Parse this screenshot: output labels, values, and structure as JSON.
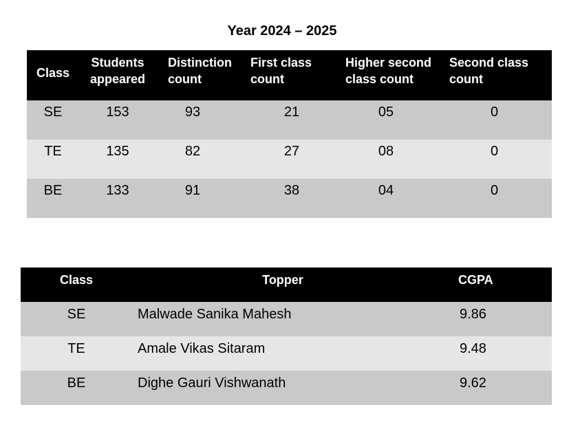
{
  "title": "Year 2024 – 2025",
  "results": {
    "headers": {
      "class": "Class",
      "students_appeared": [
        "Students",
        "appeared"
      ],
      "distinction_count": [
        "Distinction",
        "count"
      ],
      "first_class_count": [
        "First class",
        "count"
      ],
      "higher_second_class_count": [
        "Higher second",
        "class count"
      ],
      "second_class_count": [
        "Second class",
        "count"
      ]
    },
    "rows": [
      {
        "class": "SE",
        "students_appeared": "153",
        "distinction": "93",
        "first_class": "21",
        "higher_second": "05",
        "second_class": "0"
      },
      {
        "class": "TE",
        "students_appeared": "135",
        "distinction": "82",
        "first_class": "27",
        "higher_second": "08",
        "second_class": "0"
      },
      {
        "class": "BE",
        "students_appeared": "133",
        "distinction": "91",
        "first_class": "38",
        "higher_second": "04",
        "second_class": "0"
      }
    ]
  },
  "toppers": {
    "headers": {
      "class": "Class",
      "topper": "Topper",
      "cgpa": "CGPA"
    },
    "rows": [
      {
        "class": "SE",
        "topper": "Malwade Sanika Mahesh",
        "cgpa": "9.86"
      },
      {
        "class": "TE",
        "topper": "Amale Vikas Sitaram",
        "cgpa": "9.48"
      },
      {
        "class": "BE",
        "topper": "Dighe Gauri Vishwanath",
        "cgpa": "9.62"
      }
    ]
  }
}
